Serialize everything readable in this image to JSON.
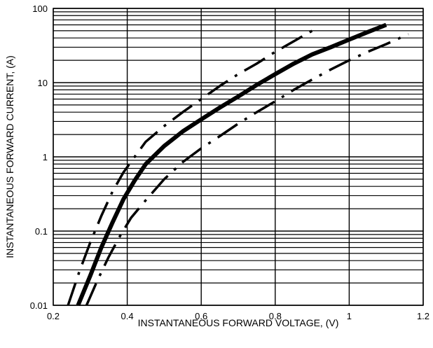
{
  "chart_data": {
    "type": "line",
    "title": "",
    "xlabel": "INSTANTANEOUS FORWARD VOLTAGE, (V)",
    "ylabel": "INSTANTANEOUS FORWARD CURRENT, (A)",
    "xlim": [
      0.2,
      1.2
    ],
    "ylim": [
      0.01,
      100
    ],
    "yscale": "log",
    "grid": true,
    "legend": "none",
    "x_ticks": [
      "0.2",
      "0.4",
      "0.6",
      "0.8",
      "1",
      "1.2"
    ],
    "y_ticks": [
      "0.01",
      "0.1",
      "1",
      "10",
      "100"
    ],
    "series": [
      {
        "style": "solid-thick",
        "color": "#000000",
        "x": [
          0.267,
          0.3,
          0.33,
          0.36,
          0.39,
          0.42,
          0.45,
          0.5,
          0.55,
          0.6,
          0.65,
          0.7,
          0.75,
          0.8,
          0.85,
          0.9,
          0.95,
          1.0,
          1.05,
          1.1
        ],
        "y": [
          0.01,
          0.025,
          0.06,
          0.13,
          0.27,
          0.48,
          0.8,
          1.4,
          2.2,
          3.2,
          4.6,
          6.5,
          9.3,
          13,
          18,
          24,
          30,
          38,
          48,
          60
        ]
      },
      {
        "style": "long-dash",
        "color": "#000000",
        "x": [
          0.24,
          0.27,
          0.3,
          0.33,
          0.36,
          0.39,
          0.42,
          0.45,
          0.5,
          0.55,
          0.6,
          0.65,
          0.7,
          0.75,
          0.8,
          0.85,
          0.9
        ],
        "y": [
          0.01,
          0.028,
          0.07,
          0.16,
          0.34,
          0.62,
          1.0,
          1.6,
          2.6,
          4.0,
          6.0,
          9.0,
          13,
          18,
          26,
          36,
          50
        ]
      },
      {
        "style": "long-dash",
        "color": "#000000",
        "x": [
          0.29,
          0.32,
          0.35,
          0.38,
          0.41,
          0.45,
          0.5,
          0.55,
          0.6,
          0.65,
          0.7,
          0.75,
          0.8,
          0.85,
          0.9,
          0.95,
          1.0,
          1.05,
          1.1,
          1.16
        ],
        "y": [
          0.01,
          0.022,
          0.045,
          0.085,
          0.15,
          0.26,
          0.5,
          0.85,
          1.3,
          1.9,
          2.8,
          4.0,
          5.6,
          8.0,
          11,
          15,
          20,
          26,
          33,
          45
        ]
      }
    ]
  }
}
